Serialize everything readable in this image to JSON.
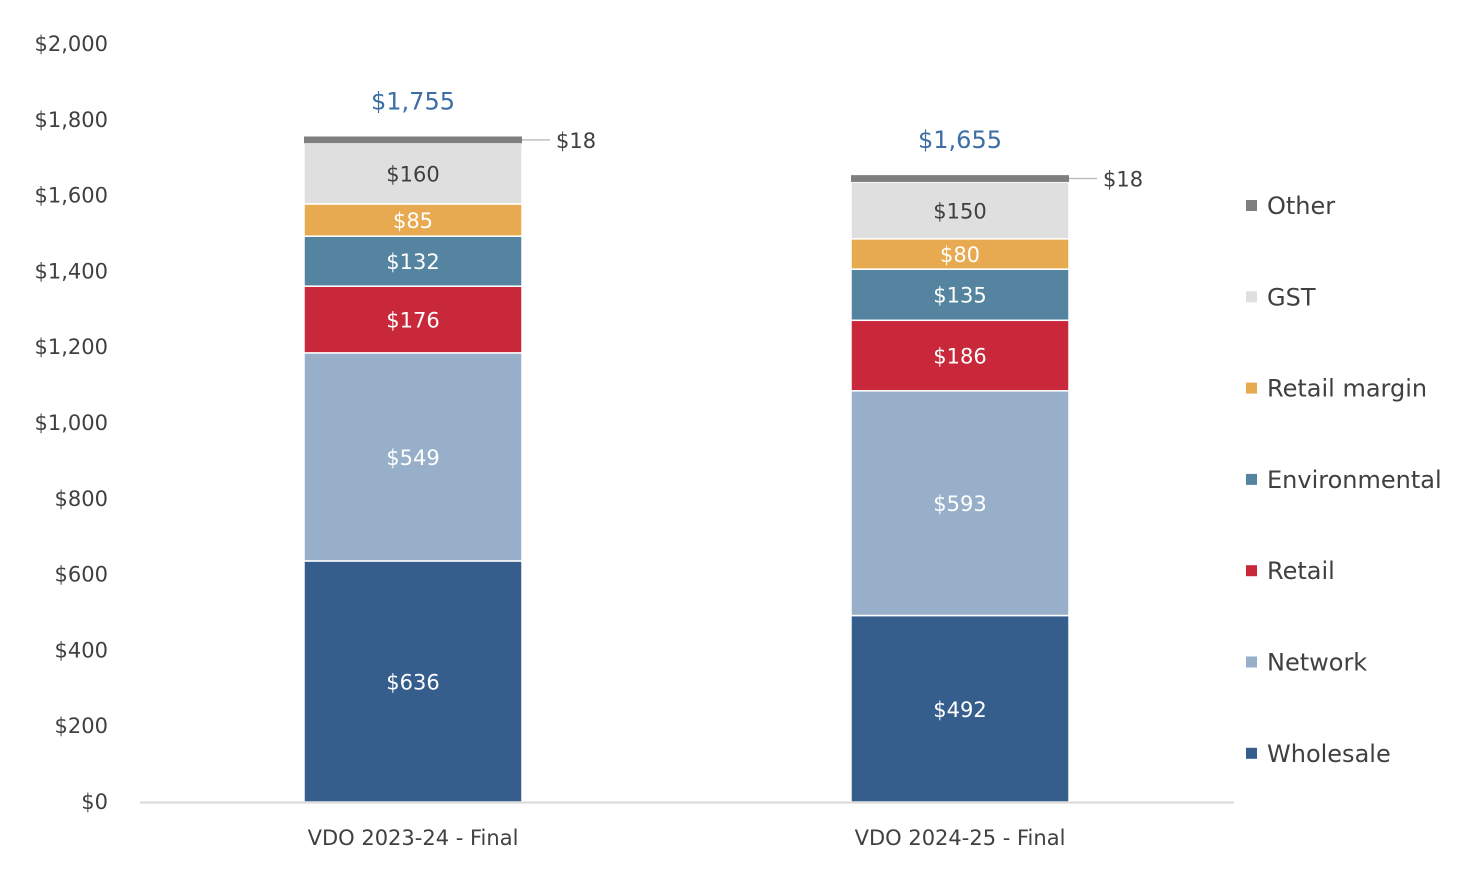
{
  "chart_data": {
    "type": "bar",
    "stacked": true,
    "categories": [
      "VDO 2023-24 - Final",
      "VDO 2024-25 - Final"
    ],
    "series": [
      {
        "name": "Wholesale",
        "values": [
          636,
          492
        ],
        "color": "#355E8D",
        "label_color": "#ffffff",
        "labels": [
          "$636",
          "$492"
        ]
      },
      {
        "name": "Network",
        "values": [
          549,
          593
        ],
        "color": "#97AFC8",
        "label_color": "#ffffff",
        "labels": [
          "$549",
          "$593"
        ]
      },
      {
        "name": "Retail",
        "values": [
          176,
          186
        ],
        "color": "#C8283A",
        "label_color": "#ffffff",
        "labels": [
          "$176",
          "$186"
        ]
      },
      {
        "name": "Environmental",
        "values": [
          132,
          135
        ],
        "color": "#5484A0",
        "label_color": "#ffffff",
        "labels": [
          "$132",
          "$135"
        ]
      },
      {
        "name": "Retail margin",
        "values": [
          85,
          80
        ],
        "color": "#E8AA50",
        "label_color": "#ffffff",
        "labels": [
          "$85",
          "$80"
        ]
      },
      {
        "name": "GST",
        "values": [
          160,
          150
        ],
        "color": "#DFDFDF",
        "label_color": "#404040",
        "labels": [
          "$160",
          "$150"
        ]
      },
      {
        "name": "Other",
        "values": [
          18,
          18
        ],
        "color": "#7F7F7F",
        "label_color": "#404040",
        "labels": [
          "$18",
          "$18"
        ]
      }
    ],
    "totals": [
      "$1,755",
      "$1,655"
    ],
    "yticks": [
      "$0",
      "$200",
      "$400",
      "$600",
      "$800",
      "$1,000",
      "$1,200",
      "$1,400",
      "$1,600",
      "$1,800",
      "$2,000"
    ],
    "ylim": [
      0,
      2000
    ],
    "legend": {
      "position": "right",
      "order": [
        "Other",
        "GST",
        "Retail margin",
        "Environmental",
        "Retail",
        "Network",
        "Wholesale"
      ]
    },
    "grid": false,
    "colors": {
      "total_label": "#3A6EA5",
      "axis_text": "#404040",
      "axis_line": "#D9D9D9"
    }
  }
}
